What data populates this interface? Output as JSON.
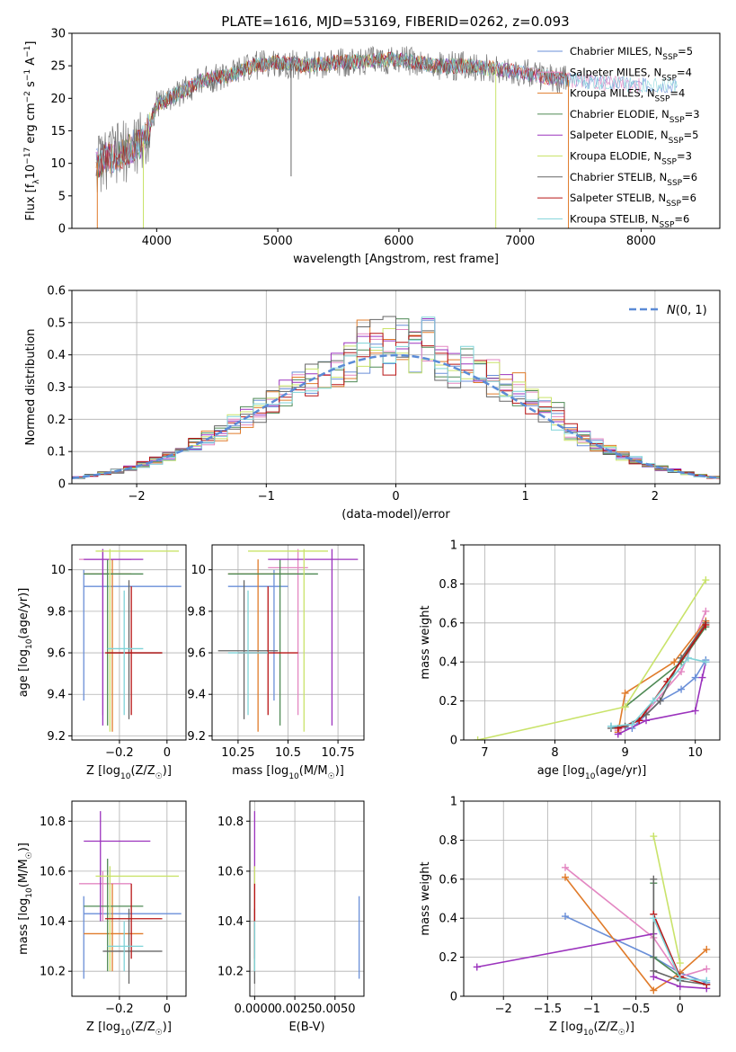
{
  "title": "PLATE=1616, MJD=53169, FIBERID=0262, z=0.093",
  "colors": [
    "#6a8fd8",
    "#e387c2",
    "#e07b2a",
    "#4f8a55",
    "#9b33bd",
    "#c9e36a",
    "#666666",
    "#b81414",
    "#7fd3d8"
  ],
  "legend_labels": [
    "Chabrier MILES, N_SSP=5",
    "Salpeter MILES, N_SSP=4",
    "Kroupa MILES, N_SSP=4",
    "Chabrier ELODIE, N_SSP=3",
    "Salpeter ELODIE, N_SSP=5",
    "Kroupa ELODIE, N_SSP=3",
    "Chabrier STELIB, N_SSP=6",
    "Salpeter STELIB, N_SSP=6",
    "Kroupa STELIB, N_SSP=6"
  ],
  "chart_data": [
    {
      "id": "spectrum",
      "type": "line",
      "xlabel": "wavelength [Angstrom, rest frame]",
      "ylabel": "Flux [f_λ10^−17 erg cm^−2 s^−1 A^−1]",
      "xlim": [
        3300,
        8650
      ],
      "ylim": [
        0,
        30
      ],
      "xticks": [
        4000,
        5000,
        6000,
        7000,
        8000
      ],
      "yticks": [
        0,
        5,
        10,
        15,
        20,
        25,
        30
      ],
      "continuum": [
        [
          3500,
          10
        ],
        [
          3700,
          11.5
        ],
        [
          3900,
          13.5
        ],
        [
          4000,
          19
        ],
        [
          4200,
          21
        ],
        [
          4400,
          23
        ],
        [
          4600,
          23.5
        ],
        [
          4800,
          25
        ],
        [
          5000,
          25.5
        ],
        [
          5200,
          25
        ],
        [
          5500,
          25.5
        ],
        [
          6000,
          26
        ],
        [
          6300,
          25
        ],
        [
          6600,
          25
        ],
        [
          7000,
          24
        ],
        [
          7300,
          23
        ],
        [
          7600,
          22.5
        ],
        [
          8000,
          22
        ],
        [
          8300,
          22
        ]
      ],
      "series_ranges": [
        [
          3500,
          8300
        ],
        [
          3500,
          8000
        ],
        [
          3500,
          7400
        ],
        [
          3500,
          6800
        ],
        [
          3500,
          7400
        ],
        [
          3700,
          6800
        ],
        [
          3500,
          7400
        ],
        [
          3500,
          7400
        ],
        [
          3500,
          8300
        ]
      ],
      "drops": [
        [
          7400,
          0
        ],
        [
          6800,
          0
        ],
        [
          3900,
          0
        ],
        [
          3500,
          0
        ]
      ]
    },
    {
      "id": "residuals",
      "type": "histogram",
      "xlabel": "(data-model)/error",
      "ylabel": "Normed distribution",
      "xlim": [
        -2.5,
        2.5
      ],
      "ylim": [
        0,
        0.6
      ],
      "xticks": [
        -2,
        -1,
        0,
        1,
        2
      ],
      "yticks": [
        0,
        0.1,
        0.2,
        0.3,
        0.4,
        0.5,
        0.6
      ],
      "bin_width": 0.1,
      "overlay_legend": "N(0,1)"
    },
    {
      "id": "age-vs-Z",
      "type": "errorbar",
      "xlabel": "Z [log10(Z/Z☉)]",
      "ylabel": "age  [log10(age/yr)]",
      "xlim": [
        -0.4,
        0.08
      ],
      "ylim": [
        9.18,
        10.12
      ],
      "xticks": [
        -0.2,
        0.0
      ],
      "yticks": [
        9.2,
        9.4,
        9.6,
        9.8,
        10.0
      ],
      "points": [
        {
          "c": 0,
          "x": -0.35,
          "y": 9.92,
          "xe": [
            -0.35,
            0.06
          ],
          "ye": [
            9.37,
            10.0
          ]
        },
        {
          "c": 1,
          "x": -0.27,
          "y": 10.05,
          "xe": [
            -0.37,
            -0.15
          ],
          "ye": [
            9.3,
            10.1
          ]
        },
        {
          "c": 2,
          "x": -0.23,
          "y": 9.98,
          "xe": [
            -0.35,
            -0.15
          ],
          "ye": [
            9.22,
            10.05
          ]
        },
        {
          "c": 3,
          "x": -0.25,
          "y": 9.98,
          "xe": [
            -0.35,
            -0.1
          ],
          "ye": [
            9.25,
            10.05
          ]
        },
        {
          "c": 4,
          "x": -0.27,
          "y": 10.05,
          "xe": [
            -0.35,
            -0.1
          ],
          "ye": [
            9.25,
            10.1
          ]
        },
        {
          "c": 5,
          "x": -0.24,
          "y": 10.09,
          "xe": [
            -0.3,
            0.05
          ],
          "ye": [
            9.22,
            10.1
          ]
        },
        {
          "c": 6,
          "x": -0.16,
          "y": 9.6,
          "xe": [
            -0.25,
            -0.02
          ],
          "ye": [
            9.28,
            9.95
          ]
        },
        {
          "c": 7,
          "x": -0.15,
          "y": 9.6,
          "xe": [
            -0.26,
            -0.02
          ],
          "ye": [
            9.3,
            9.92
          ]
        },
        {
          "c": 8,
          "x": -0.18,
          "y": 9.62,
          "xe": [
            -0.25,
            -0.1
          ],
          "ye": [
            9.3,
            9.9
          ]
        }
      ]
    },
    {
      "id": "age-vs-mass",
      "type": "errorbar",
      "xlabel": "mass [log10(M/M☉)]",
      "ylabel": "",
      "xlim": [
        10.12,
        10.88
      ],
      "ylim": [
        9.18,
        10.12
      ],
      "xticks": [
        10.25,
        10.5,
        10.75
      ],
      "yticks": [
        9.2,
        9.4,
        9.6,
        9.8,
        10.0
      ],
      "points": [
        {
          "c": 0,
          "x": 10.43,
          "y": 9.92,
          "xe": [
            10.2,
            10.5
          ],
          "ye": [
            9.37,
            10.0
          ]
        },
        {
          "c": 1,
          "x": 10.55,
          "y": 10.01,
          "xe": [
            10.4,
            10.6
          ],
          "ye": [
            9.3,
            10.1
          ]
        },
        {
          "c": 2,
          "x": 10.35,
          "y": 9.98,
          "xe": [
            10.2,
            10.55
          ],
          "ye": [
            9.22,
            10.05
          ]
        },
        {
          "c": 3,
          "x": 10.46,
          "y": 9.98,
          "xe": [
            10.2,
            10.65
          ],
          "ye": [
            9.25,
            10.05
          ]
        },
        {
          "c": 4,
          "x": 10.72,
          "y": 10.05,
          "xe": [
            10.4,
            10.85
          ],
          "ye": [
            9.25,
            10.1
          ]
        },
        {
          "c": 5,
          "x": 10.58,
          "y": 10.09,
          "xe": [
            10.3,
            10.7
          ],
          "ye": [
            9.22,
            10.1
          ]
        },
        {
          "c": 6,
          "x": 10.28,
          "y": 9.61,
          "xe": [
            10.15,
            10.45
          ],
          "ye": [
            9.28,
            9.95
          ]
        },
        {
          "c": 7,
          "x": 10.4,
          "y": 9.6,
          "xe": [
            10.25,
            10.55
          ],
          "ye": [
            9.3,
            9.92
          ]
        },
        {
          "c": 8,
          "x": 10.3,
          "y": 9.6,
          "xe": [
            10.2,
            10.4
          ],
          "ye": [
            9.3,
            9.9
          ]
        }
      ]
    },
    {
      "id": "weight-vs-age",
      "type": "line",
      "xlabel": "age  [log10(age/yr)]",
      "ylabel": "mass weight",
      "xlim": [
        6.7,
        10.35
      ],
      "ylim": [
        0,
        1.0
      ],
      "xticks": [
        7,
        8,
        9,
        10
      ],
      "yticks": [
        0,
        0.2,
        0.4,
        0.6,
        0.8,
        1.0
      ],
      "series": [
        {
          "c": 0,
          "pts": [
            [
              8.8,
              0.07
            ],
            [
              9.1,
              0.06
            ],
            [
              9.5,
              0.2
            ],
            [
              9.8,
              0.26
            ],
            [
              10.0,
              0.32
            ],
            [
              10.15,
              0.41
            ]
          ]
        },
        {
          "c": 1,
          "pts": [
            [
              8.9,
              0.05
            ],
            [
              9.2,
              0.1
            ],
            [
              9.8,
              0.35
            ],
            [
              10.15,
              0.66
            ]
          ]
        },
        {
          "c": 2,
          "pts": [
            [
              8.9,
              0.04
            ],
            [
              9.0,
              0.24
            ],
            [
              9.7,
              0.4
            ],
            [
              10.15,
              0.61
            ]
          ]
        },
        {
          "c": 3,
          "pts": [
            [
              9.0,
              0.17
            ],
            [
              9.8,
              0.4
            ],
            [
              10.15,
              0.58
            ]
          ]
        },
        {
          "c": 4,
          "pts": [
            [
              8.9,
              0.03
            ],
            [
              9.3,
              0.1
            ],
            [
              10.0,
              0.15
            ],
            [
              10.1,
              0.32
            ],
            [
              10.15,
              0.4
            ]
          ]
        },
        {
          "c": 5,
          "pts": [
            [
              6.9,
              0.0
            ],
            [
              9.0,
              0.17
            ],
            [
              10.15,
              0.82
            ]
          ]
        },
        {
          "c": 6,
          "pts": [
            [
              8.8,
              0.06
            ],
            [
              9.0,
              0.07
            ],
            [
              9.3,
              0.13
            ],
            [
              9.5,
              0.2
            ],
            [
              9.8,
              0.42
            ],
            [
              10.15,
              0.6
            ]
          ]
        },
        {
          "c": 7,
          "pts": [
            [
              8.9,
              0.06
            ],
            [
              9.2,
              0.1
            ],
            [
              9.6,
              0.3
            ],
            [
              10.15,
              0.59
            ]
          ]
        },
        {
          "c": 8,
          "pts": [
            [
              8.8,
              0.07
            ],
            [
              9.1,
              0.08
            ],
            [
              9.4,
              0.2
            ],
            [
              9.9,
              0.42
            ],
            [
              10.15,
              0.4
            ]
          ]
        }
      ]
    },
    {
      "id": "mass-vs-Z",
      "type": "errorbar",
      "xlabel": "Z [log10(Z/Z☉)]",
      "ylabel": "mass [log10(M/M☉)]",
      "xlim": [
        -0.4,
        0.08
      ],
      "ylim": [
        10.1,
        10.88
      ],
      "xticks": [
        -0.2,
        0.0
      ],
      "yticks": [
        10.2,
        10.4,
        10.6,
        10.8
      ],
      "points": [
        {
          "c": 0,
          "x": -0.35,
          "y": 10.43,
          "xe": [
            -0.35,
            0.06
          ],
          "ye": [
            10.17,
            10.5
          ]
        },
        {
          "c": 1,
          "x": -0.27,
          "y": 10.55,
          "xe": [
            -0.37,
            -0.15
          ],
          "ye": [
            10.4,
            10.6
          ]
        },
        {
          "c": 2,
          "x": -0.23,
          "y": 10.35,
          "xe": [
            -0.35,
            -0.1
          ],
          "ye": [
            10.2,
            10.55
          ]
        },
        {
          "c": 3,
          "x": -0.25,
          "y": 10.46,
          "xe": [
            -0.35,
            -0.1
          ],
          "ye": [
            10.2,
            10.65
          ]
        },
        {
          "c": 4,
          "x": -0.28,
          "y": 10.72,
          "xe": [
            -0.35,
            -0.07
          ],
          "ye": [
            10.4,
            10.84
          ]
        },
        {
          "c": 5,
          "x": -0.24,
          "y": 10.58,
          "xe": [
            -0.3,
            0.05
          ],
          "ye": [
            10.2,
            10.62
          ]
        },
        {
          "c": 6,
          "x": -0.16,
          "y": 10.28,
          "xe": [
            -0.27,
            -0.02
          ],
          "ye": [
            10.15,
            10.45
          ]
        },
        {
          "c": 7,
          "x": -0.15,
          "y": 10.41,
          "xe": [
            -0.26,
            -0.02
          ],
          "ye": [
            10.25,
            10.55
          ]
        },
        {
          "c": 8,
          "x": -0.18,
          "y": 10.3,
          "xe": [
            -0.25,
            -0.1
          ],
          "ye": [
            10.2,
            10.4
          ]
        }
      ]
    },
    {
      "id": "mass-vs-ebv",
      "type": "errorbar",
      "xlabel": "E(B-V)",
      "ylabel": "",
      "xlim": [
        -0.0003,
        0.0068
      ],
      "ylim": [
        10.1,
        10.88
      ],
      "xticks": [
        0.0,
        0.0025,
        0.005
      ],
      "xtick_labels": [
        "0.0000",
        "0.0025",
        "0.0050"
      ],
      "yticks": [
        10.2,
        10.4,
        10.6,
        10.8
      ],
      "points": [
        {
          "c": 0,
          "x": 0.0065,
          "y": 10.43,
          "ye": [
            10.17,
            10.5
          ]
        },
        {
          "c": 4,
          "x": 0.0,
          "y": 10.72,
          "ye": [
            10.4,
            10.84
          ]
        },
        {
          "c": 5,
          "x": 0.0,
          "y": 10.58,
          "ye": [
            10.2,
            10.62
          ]
        },
        {
          "c": 6,
          "x": 0.0,
          "y": 10.28,
          "ye": [
            10.15,
            10.45
          ]
        },
        {
          "c": 7,
          "x": 0.0,
          "y": 10.41,
          "ye": [
            10.25,
            10.55
          ]
        },
        {
          "c": 8,
          "x": 0.0,
          "y": 10.3,
          "ye": [
            10.2,
            10.4
          ]
        }
      ]
    },
    {
      "id": "weight-vs-Z",
      "type": "line",
      "xlabel": "Z [log10(Z/Z☉)]",
      "ylabel": "mass weight",
      "xlim": [
        -2.45,
        0.45
      ],
      "ylim": [
        0,
        1.0
      ],
      "xticks": [
        -2.0,
        -1.5,
        -1.0,
        -0.5,
        0.0
      ],
      "yticks": [
        0,
        0.2,
        0.4,
        0.6,
        0.8,
        1.0
      ],
      "series": [
        {
          "c": 0,
          "pts": [
            [
              -1.3,
              0.41
            ],
            [
              -0.3,
              0.2
            ],
            [
              0.0,
              0.12
            ],
            [
              0.3,
              0.07
            ]
          ]
        },
        {
          "c": 1,
          "pts": [
            [
              -1.3,
              0.66
            ],
            [
              -0.3,
              0.3
            ],
            [
              0.0,
              0.1
            ],
            [
              0.3,
              0.14
            ]
          ]
        },
        {
          "c": 2,
          "pts": [
            [
              -1.3,
              0.61
            ],
            [
              -0.3,
              0.03
            ],
            [
              0.0,
              0.12
            ],
            [
              0.3,
              0.24
            ]
          ]
        },
        {
          "c": 3,
          "pts": [
            [
              -0.3,
              0.58
            ],
            [
              -0.3,
              0.2
            ],
            [
              0.0,
              0.1
            ]
          ]
        },
        {
          "c": 4,
          "pts": [
            [
              -2.3,
              0.15
            ],
            [
              -0.3,
              0.32
            ],
            [
              -0.3,
              0.1
            ],
            [
              0.0,
              0.05
            ],
            [
              0.3,
              0.04
            ]
          ]
        },
        {
          "c": 5,
          "pts": [
            [
              -0.3,
              0.82
            ],
            [
              0.0,
              0.17
            ]
          ]
        },
        {
          "c": 6,
          "pts": [
            [
              -0.3,
              0.6
            ],
            [
              -0.3,
              0.13
            ],
            [
              0.0,
              0.08
            ],
            [
              0.3,
              0.06
            ]
          ]
        },
        {
          "c": 7,
          "pts": [
            [
              -0.3,
              0.42
            ],
            [
              0.0,
              0.1
            ],
            [
              0.3,
              0.06
            ]
          ]
        },
        {
          "c": 8,
          "pts": [
            [
              -0.3,
              0.4
            ],
            [
              0.0,
              0.09
            ],
            [
              0.3,
              0.08
            ]
          ]
        }
      ]
    }
  ]
}
